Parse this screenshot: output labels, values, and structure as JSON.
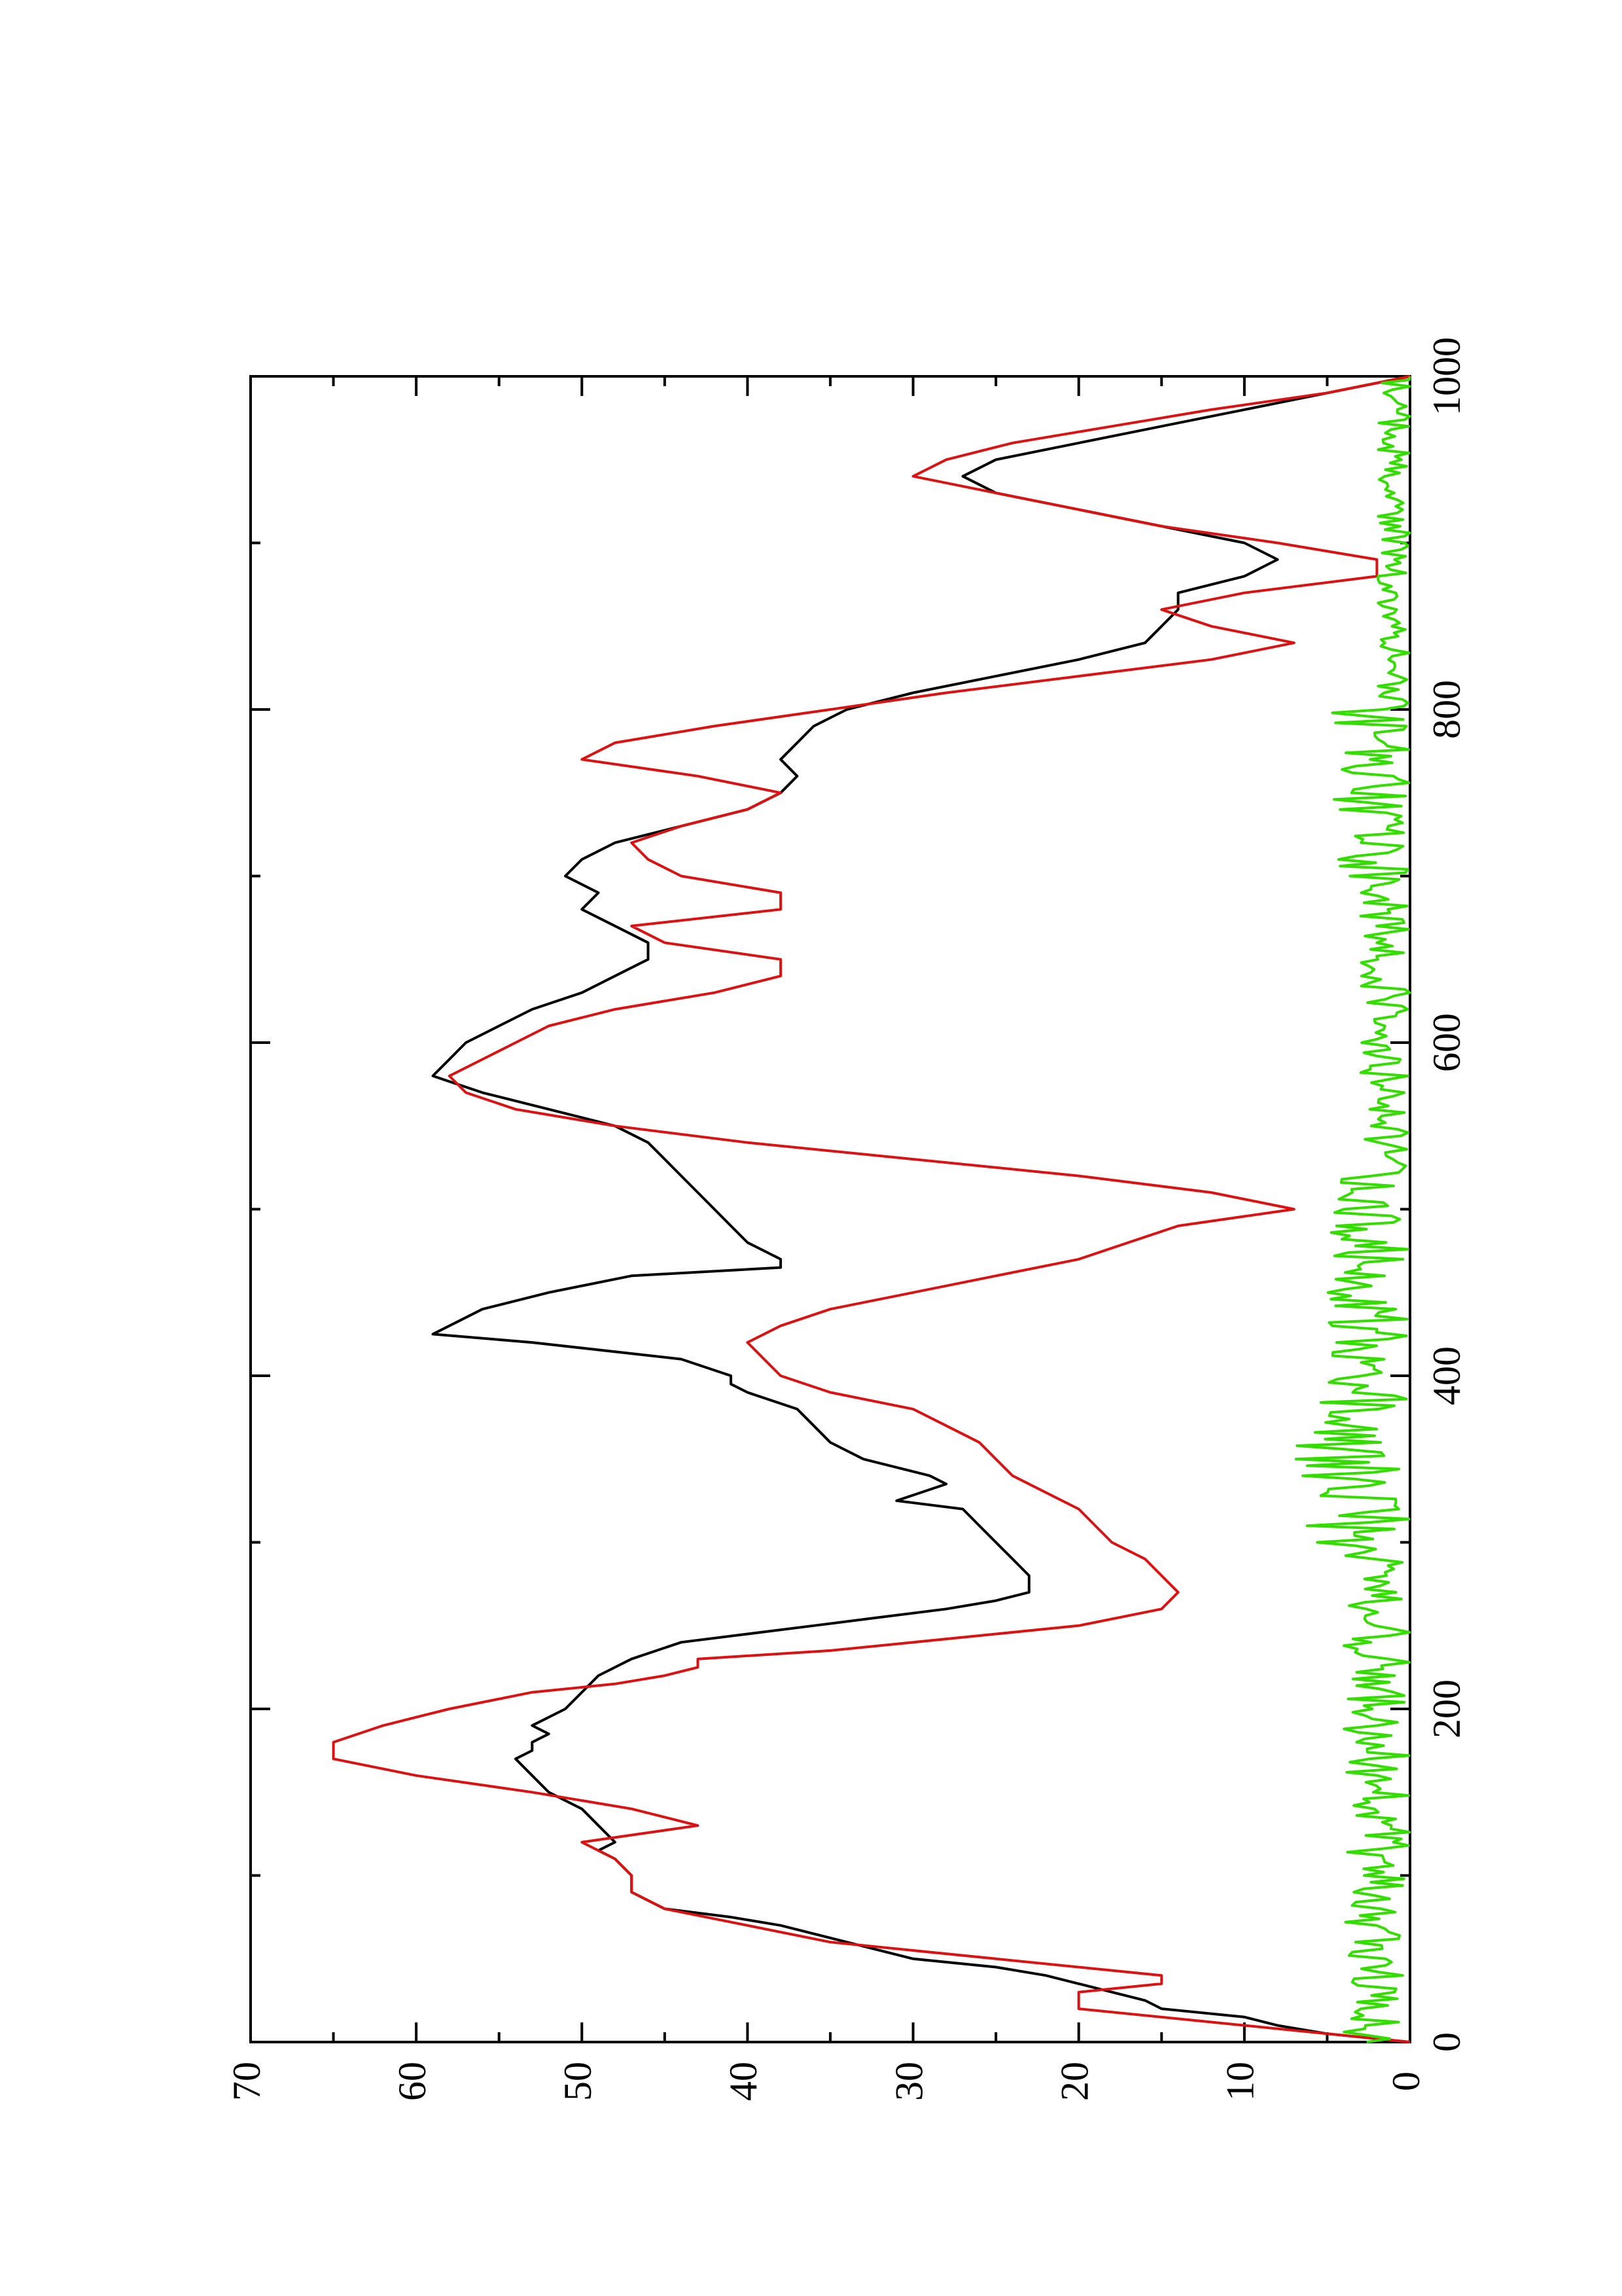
{
  "chart_data": {
    "type": "line",
    "orientation": "rotated-90-ccw",
    "title": "",
    "xlabel": "",
    "ylabel": "",
    "xlim": [
      0,
      1000
    ],
    "ylim": [
      0,
      70
    ],
    "x_ticks": [
      0,
      200,
      400,
      600,
      800,
      1000
    ],
    "x_minor_ticks": [
      100,
      300,
      500,
      700,
      900
    ],
    "y_ticks": [
      0,
      10,
      20,
      30,
      40,
      50,
      60,
      70
    ],
    "y_minor_ticks": [
      5,
      15,
      25,
      35,
      45,
      55,
      65
    ],
    "grid": false,
    "legend": "none",
    "series": [
      {
        "color": "#000000",
        "points": [
          [
            0,
            0
          ],
          [
            5,
            5
          ],
          [
            10,
            8
          ],
          [
            15,
            10
          ],
          [
            20,
            15
          ],
          [
            25,
            16
          ],
          [
            30,
            18
          ],
          [
            35,
            20
          ],
          [
            40,
            22
          ],
          [
            45,
            25
          ],
          [
            50,
            30
          ],
          [
            60,
            34
          ],
          [
            70,
            38
          ],
          [
            75,
            41
          ],
          [
            80,
            45
          ],
          [
            85,
            46
          ],
          [
            90,
            47
          ],
          [
            100,
            47
          ],
          [
            110,
            48
          ],
          [
            115,
            49
          ],
          [
            120,
            48
          ],
          [
            130,
            49
          ],
          [
            140,
            50
          ],
          [
            150,
            52
          ],
          [
            160,
            53
          ],
          [
            170,
            54
          ],
          [
            175,
            53
          ],
          [
            180,
            53
          ],
          [
            185,
            52
          ],
          [
            190,
            53
          ],
          [
            200,
            51
          ],
          [
            210,
            50
          ],
          [
            220,
            49
          ],
          [
            230,
            47
          ],
          [
            240,
            44
          ],
          [
            245,
            40
          ],
          [
            250,
            36
          ],
          [
            255,
            32
          ],
          [
            260,
            28
          ],
          [
            265,
            25
          ],
          [
            270,
            23
          ],
          [
            280,
            23
          ],
          [
            290,
            24
          ],
          [
            300,
            25
          ],
          [
            310,
            26
          ],
          [
            320,
            27
          ],
          [
            325,
            31
          ],
          [
            335,
            28
          ],
          [
            340,
            29
          ],
          [
            350,
            33
          ],
          [
            360,
            35
          ],
          [
            370,
            36
          ],
          [
            380,
            37
          ],
          [
            390,
            40
          ],
          [
            395,
            41
          ],
          [
            400,
            41
          ],
          [
            410,
            44
          ],
          [
            420,
            53
          ],
          [
            425,
            59
          ],
          [
            430,
            58
          ],
          [
            440,
            56
          ],
          [
            450,
            52
          ],
          [
            460,
            47
          ],
          [
            465,
            38
          ],
          [
            470,
            38
          ],
          [
            480,
            40
          ],
          [
            490,
            41
          ],
          [
            500,
            42
          ],
          [
            510,
            43
          ],
          [
            520,
            44
          ],
          [
            530,
            45
          ],
          [
            540,
            46
          ],
          [
            550,
            48
          ],
          [
            560,
            52
          ],
          [
            570,
            56
          ],
          [
            580,
            59
          ],
          [
            590,
            58
          ],
          [
            600,
            57
          ],
          [
            610,
            55
          ],
          [
            620,
            53
          ],
          [
            630,
            50
          ],
          [
            640,
            48
          ],
          [
            650,
            46
          ],
          [
            660,
            46
          ],
          [
            670,
            48
          ],
          [
            680,
            50
          ],
          [
            690,
            49
          ],
          [
            700,
            51
          ],
          [
            710,
            50
          ],
          [
            720,
            48
          ],
          [
            730,
            44
          ],
          [
            740,
            40
          ],
          [
            750,
            38
          ],
          [
            760,
            37
          ],
          [
            770,
            38
          ],
          [
            780,
            37
          ],
          [
            790,
            36
          ],
          [
            800,
            34
          ],
          [
            810,
            30
          ],
          [
            820,
            25
          ],
          [
            830,
            20
          ],
          [
            840,
            16
          ],
          [
            850,
            15
          ],
          [
            860,
            14
          ],
          [
            870,
            14
          ],
          [
            880,
            10
          ],
          [
            890,
            8
          ],
          [
            900,
            10
          ],
          [
            910,
            15
          ],
          [
            920,
            20
          ],
          [
            930,
            25
          ],
          [
            940,
            27
          ],
          [
            950,
            25
          ],
          [
            960,
            20
          ],
          [
            970,
            15
          ],
          [
            980,
            10
          ],
          [
            990,
            5
          ],
          [
            1000,
            0
          ]
        ]
      },
      {
        "color": "#dd1111",
        "points": [
          [
            0,
            0
          ],
          [
            10,
            10
          ],
          [
            20,
            20
          ],
          [
            30,
            20
          ],
          [
            35,
            15
          ],
          [
            40,
            15
          ],
          [
            50,
            25
          ],
          [
            60,
            35
          ],
          [
            70,
            40
          ],
          [
            80,
            45
          ],
          [
            90,
            47
          ],
          [
            100,
            47
          ],
          [
            110,
            48
          ],
          [
            120,
            50
          ],
          [
            130,
            43
          ],
          [
            140,
            47
          ],
          [
            150,
            53
          ],
          [
            160,
            60
          ],
          [
            170,
            65
          ],
          [
            180,
            65
          ],
          [
            190,
            62
          ],
          [
            200,
            58
          ],
          [
            210,
            53
          ],
          [
            215,
            48
          ],
          [
            220,
            45
          ],
          [
            225,
            43
          ],
          [
            230,
            43
          ],
          [
            235,
            35
          ],
          [
            240,
            30
          ],
          [
            245,
            25
          ],
          [
            250,
            20
          ],
          [
            260,
            15
          ],
          [
            270,
            14
          ],
          [
            280,
            15
          ],
          [
            290,
            16
          ],
          [
            300,
            18
          ],
          [
            310,
            19
          ],
          [
            320,
            20
          ],
          [
            330,
            22
          ],
          [
            340,
            24
          ],
          [
            350,
            25
          ],
          [
            360,
            26
          ],
          [
            370,
            28
          ],
          [
            380,
            30
          ],
          [
            390,
            35
          ],
          [
            400,
            38
          ],
          [
            410,
            39
          ],
          [
            420,
            40
          ],
          [
            430,
            38
          ],
          [
            440,
            35
          ],
          [
            450,
            30
          ],
          [
            460,
            25
          ],
          [
            470,
            20
          ],
          [
            480,
            17
          ],
          [
            490,
            14
          ],
          [
            500,
            7
          ],
          [
            510,
            12
          ],
          [
            520,
            20
          ],
          [
            530,
            30
          ],
          [
            540,
            40
          ],
          [
            550,
            48
          ],
          [
            560,
            54
          ],
          [
            570,
            57
          ],
          [
            580,
            58
          ],
          [
            590,
            56
          ],
          [
            600,
            54
          ],
          [
            610,
            52
          ],
          [
            620,
            48
          ],
          [
            630,
            42
          ],
          [
            640,
            38
          ],
          [
            650,
            38
          ],
          [
            660,
            45
          ],
          [
            670,
            47
          ],
          [
            680,
            38
          ],
          [
            690,
            38
          ],
          [
            700,
            44
          ],
          [
            710,
            46
          ],
          [
            720,
            47
          ],
          [
            730,
            44
          ],
          [
            740,
            40
          ],
          [
            750,
            38
          ],
          [
            760,
            43
          ],
          [
            770,
            50
          ],
          [
            780,
            48
          ],
          [
            790,
            42
          ],
          [
            800,
            35
          ],
          [
            810,
            28
          ],
          [
            820,
            20
          ],
          [
            830,
            12
          ],
          [
            840,
            7
          ],
          [
            850,
            12
          ],
          [
            860,
            15
          ],
          [
            870,
            10
          ],
          [
            880,
            2
          ],
          [
            890,
            2
          ],
          [
            900,
            8
          ],
          [
            910,
            15
          ],
          [
            920,
            20
          ],
          [
            930,
            25
          ],
          [
            940,
            30
          ],
          [
            950,
            28
          ],
          [
            960,
            24
          ],
          [
            970,
            18
          ],
          [
            980,
            12
          ],
          [
            990,
            5
          ],
          [
            1000,
            0
          ]
        ]
      },
      {
        "color": "#33dd00",
        "noise_envelope": {
          "note": "dense noisy trace near zero",
          "segments": [
            {
              "x": [
                0,
                300
              ],
              "min": 0,
              "max": 4
            },
            {
              "x": [
                300,
                400
              ],
              "min": 0,
              "max": 7
            },
            {
              "x": [
                400,
                520
              ],
              "min": 0,
              "max": 5
            },
            {
              "x": [
                520,
                700
              ],
              "min": 0,
              "max": 3
            },
            {
              "x": [
                700,
                800
              ],
              "min": 0,
              "max": 5
            },
            {
              "x": [
                800,
                1000
              ],
              "min": 0,
              "max": 2
            }
          ]
        }
      }
    ]
  }
}
